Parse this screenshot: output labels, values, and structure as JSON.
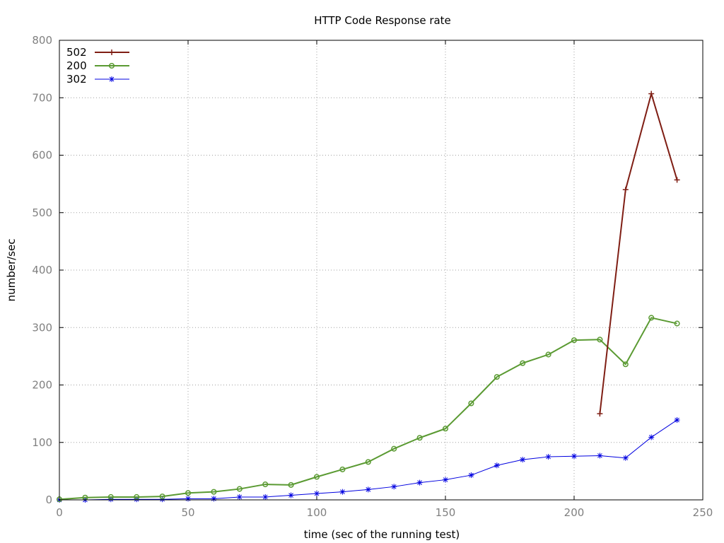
{
  "chart_data": {
    "type": "line",
    "title": "HTTP Code Response rate",
    "xlabel": "time (sec of the running test)",
    "ylabel": "number/sec",
    "xlim": [
      0,
      250
    ],
    "ylim": [
      0,
      800
    ],
    "xticks": [
      "0",
      "50",
      "100",
      "150",
      "200",
      "250"
    ],
    "yticks": [
      "0",
      "100",
      "200",
      "300",
      "400",
      "500",
      "600",
      "700",
      "800"
    ],
    "grid": true,
    "legend_position": "top-left",
    "series": [
      {
        "name": "502",
        "color": "#7f1e14",
        "marker": "plus",
        "x": [
          210,
          220,
          230,
          240
        ],
        "y": [
          150,
          540,
          707,
          557
        ]
      },
      {
        "name": "200",
        "color": "#5a9a32",
        "marker": "circle",
        "x": [
          0,
          10,
          20,
          30,
          40,
          50,
          60,
          70,
          80,
          90,
          100,
          110,
          120,
          130,
          140,
          150,
          160,
          170,
          180,
          190,
          200,
          210,
          220,
          230,
          240
        ],
        "y": [
          1,
          4,
          5,
          5,
          6,
          12,
          14,
          19,
          27,
          26,
          40,
          53,
          66,
          89,
          108,
          124,
          168,
          214,
          238,
          253,
          278,
          279,
          236,
          317,
          307
        ]
      },
      {
        "name": "302",
        "color": "#0000e0",
        "marker": "asterisk",
        "x": [
          0,
          10,
          20,
          30,
          40,
          50,
          60,
          70,
          80,
          90,
          100,
          110,
          120,
          130,
          140,
          150,
          160,
          170,
          180,
          190,
          200,
          210,
          220,
          230,
          240
        ],
        "y": [
          0,
          0,
          1,
          1,
          1,
          2,
          2,
          5,
          5,
          8,
          11,
          14,
          18,
          23,
          30,
          35,
          43,
          60,
          70,
          75,
          76,
          77,
          73,
          109,
          139
        ]
      }
    ]
  }
}
